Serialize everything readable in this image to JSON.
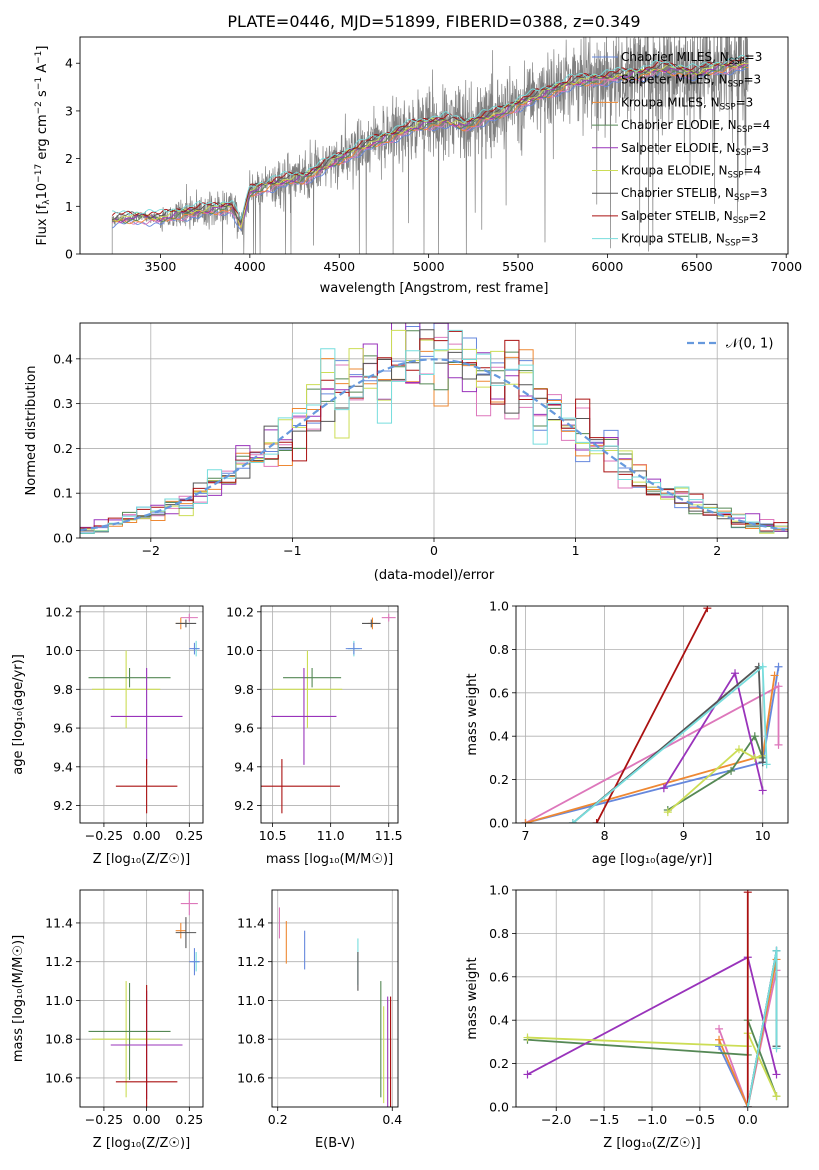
{
  "page": {
    "title": "PLATE=0446, MJD=51899, FIBERID=0388, z=0.349"
  },
  "colors": {
    "chabrier_miles": "#6688dd",
    "salpeter_miles": "#dd77bb",
    "kroupa_miles": "#ee8833",
    "chabrier_elodie": "#558855",
    "salpeter_elodie": "#9933bb",
    "kroupa_elodie": "#ccdd55",
    "chabrier_stelib": "#555555",
    "salpeter_stelib": "#aa1111",
    "kroupa_stelib": "#77dddd",
    "data_gray": "#808080",
    "normal_curve": "#6699dd"
  },
  "chart_data": [
    {
      "id": "spectrum",
      "type": "line",
      "xlabel": "wavelength [Angstrom, rest frame]",
      "ylabel_parts": {
        "main": "Flux [f",
        "sub": "λ",
        "mid": "10",
        "sup1": "−17",
        "unit": " erg cm",
        "sup2": "−2",
        "s": " s",
        "sup3": "−1",
        "A": " A",
        "sup4": "−1",
        "close": "]"
      },
      "xlim": [
        3050,
        7010
      ],
      "ylim": [
        0,
        4.55
      ],
      "xticks": [
        3500,
        4000,
        4500,
        5000,
        5500,
        6000,
        6500,
        7000
      ],
      "yticks": [
        0,
        1,
        2,
        3,
        4
      ],
      "grid": false,
      "legend_position": "top-right",
      "data_range": [
        3230,
        6790
      ],
      "model_anchor_points": [
        [
          3230,
          0.72
        ],
        [
          3400,
          0.78
        ],
        [
          3500,
          0.75
        ],
        [
          3600,
          0.85
        ],
        [
          3700,
          0.9
        ],
        [
          3800,
          0.95
        ],
        [
          3900,
          1.0
        ],
        [
          3950,
          0.6
        ],
        [
          4000,
          1.3
        ],
        [
          4100,
          1.45
        ],
        [
          4200,
          1.55
        ],
        [
          4300,
          1.6
        ],
        [
          4400,
          1.8
        ],
        [
          4500,
          2.0
        ],
        [
          4600,
          2.2
        ],
        [
          4700,
          2.35
        ],
        [
          4800,
          2.5
        ],
        [
          4900,
          2.65
        ],
        [
          5000,
          2.75
        ],
        [
          5100,
          2.8
        ],
        [
          5200,
          2.7
        ],
        [
          5300,
          2.85
        ],
        [
          5400,
          2.95
        ],
        [
          5500,
          3.15
        ],
        [
          5600,
          3.3
        ],
        [
          5700,
          3.45
        ],
        [
          5800,
          3.6
        ],
        [
          5900,
          3.65
        ],
        [
          6000,
          3.7
        ],
        [
          6100,
          3.75
        ],
        [
          6200,
          3.8
        ],
        [
          6300,
          3.9
        ],
        [
          6400,
          3.85
        ],
        [
          6500,
          3.8
        ],
        [
          6600,
          3.9
        ],
        [
          6700,
          3.95
        ],
        [
          6790,
          4.0
        ]
      ],
      "legend": [
        {
          "name": "Chabrier MILES, N",
          "sub": "SSP",
          "n": "=3",
          "color_key": "chabrier_miles"
        },
        {
          "name": "Salpeter MILES, N",
          "sub": "SSP",
          "n": "=3",
          "color_key": "salpeter_miles"
        },
        {
          "name": "Kroupa MILES, N",
          "sub": "SSP",
          "n": "=3",
          "color_key": "kroupa_miles"
        },
        {
          "name": "Chabrier ELODIE, N",
          "sub": "SSP",
          "n": "=4",
          "color_key": "chabrier_elodie"
        },
        {
          "name": "Salpeter ELODIE, N",
          "sub": "SSP",
          "n": "=3",
          "color_key": "salpeter_elodie"
        },
        {
          "name": "Kroupa ELODIE, N",
          "sub": "SSP",
          "n": "=4",
          "color_key": "kroupa_elodie"
        },
        {
          "name": "Chabrier STELIB, N",
          "sub": "SSP",
          "n": "=3",
          "color_key": "chabrier_stelib"
        },
        {
          "name": "Salpeter STELIB, N",
          "sub": "SSP",
          "n": "=2",
          "color_key": "salpeter_stelib"
        },
        {
          "name": "Kroupa STELIB, N",
          "sub": "SSP",
          "n": "=3",
          "color_key": "kroupa_stelib"
        }
      ]
    },
    {
      "id": "residuals",
      "type": "line",
      "xlabel": "(data-model)/error",
      "ylabel": "Normed distribution",
      "xlim": [
        -2.5,
        2.5
      ],
      "ylim": [
        0,
        0.48
      ],
      "xticks": [
        -2,
        -1,
        0,
        1,
        2
      ],
      "yticks": [
        0.0,
        0.1,
        0.2,
        0.3,
        0.4
      ],
      "grid": true,
      "legend_position": "top-right",
      "legend_label": "𝒩(0, 1)",
      "bin_width": 0.1,
      "series_keys": [
        "chabrier_miles",
        "salpeter_miles",
        "kroupa_miles",
        "chabrier_elodie",
        "salpeter_elodie",
        "kroupa_elodie",
        "chabrier_stelib",
        "salpeter_stelib",
        "kroupa_stelib"
      ]
    },
    {
      "id": "age_vs_Z",
      "type": "errorbar",
      "xlabel": "Z [log₁₀(Z/Z☉)]",
      "ylabel": "age  [log₁₀(age/yr)]",
      "xlim": [
        -0.39,
        0.33
      ],
      "ylim": [
        9.11,
        10.23
      ],
      "xticks": [
        -0.25,
        0.0,
        0.25
      ],
      "xtick_labels": [
        "−0.25",
        "0.00",
        "0.25"
      ],
      "yticks": [
        9.2,
        9.4,
        9.6,
        9.8,
        10.0,
        10.2
      ],
      "grid": true,
      "points": [
        {
          "c": "kroupa_elodie",
          "x": -0.12,
          "y": 9.8,
          "xerr": 0.2,
          "yerr": 0.2
        },
        {
          "c": "chabrier_elodie",
          "x": -0.1,
          "y": 9.86,
          "xerr": 0.24,
          "yerr": 0.05
        },
        {
          "c": "salpeter_elodie",
          "x": 0.0,
          "y": 9.66,
          "xerr": 0.21,
          "yerr": 0.25
        },
        {
          "c": "salpeter_stelib",
          "x": 0.0,
          "y": 9.3,
          "xerr": 0.18,
          "yerr": 0.14
        },
        {
          "c": "salpeter_miles",
          "x": 0.25,
          "y": 10.17,
          "xerr": 0.05,
          "yerr": 0.02
        },
        {
          "c": "kroupa_miles",
          "x": 0.2,
          "y": 10.14,
          "xerr": 0.03,
          "yerr": 0.03
        },
        {
          "c": "chabrier_stelib",
          "x": 0.23,
          "y": 10.14,
          "xerr": 0.06,
          "yerr": 0.02
        },
        {
          "c": "kroupa_stelib",
          "x": 0.29,
          "y": 10.01,
          "xerr": 0.02,
          "yerr": 0.04
        },
        {
          "c": "chabrier_miles",
          "x": 0.28,
          "y": 10.01,
          "xerr": 0.03,
          "yerr": 0.03
        }
      ]
    },
    {
      "id": "age_vs_mass",
      "type": "errorbar",
      "xlabel": "mass [log₁₀(M/M☉)]",
      "xlim": [
        10.4,
        11.58
      ],
      "ylim": [
        9.11,
        10.23
      ],
      "xticks": [
        10.5,
        11.0,
        11.5
      ],
      "xtick_labels": [
        "10.5",
        "11.0",
        "11.5"
      ],
      "yticks": [
        9.2,
        9.4,
        9.6,
        9.8,
        10.0,
        10.2
      ],
      "grid": true,
      "points": [
        {
          "c": "kroupa_elodie",
          "x": 10.8,
          "y": 9.8,
          "xerr": 0.3,
          "yerr": 0.2
        },
        {
          "c": "chabrier_elodie",
          "x": 10.84,
          "y": 9.86,
          "xerr": 0.25,
          "yerr": 0.05
        },
        {
          "c": "salpeter_elodie",
          "x": 10.77,
          "y": 9.66,
          "xerr": 0.28,
          "yerr": 0.25
        },
        {
          "c": "salpeter_stelib",
          "x": 10.58,
          "y": 9.3,
          "xerr": 0.5,
          "yerr": 0.14
        },
        {
          "c": "salpeter_miles",
          "x": 11.5,
          "y": 10.17,
          "xerr": 0.06,
          "yerr": 0.02
        },
        {
          "c": "kroupa_miles",
          "x": 11.36,
          "y": 10.14,
          "xerr": 0.04,
          "yerr": 0.03
        },
        {
          "c": "chabrier_stelib",
          "x": 11.35,
          "y": 10.14,
          "xerr": 0.08,
          "yerr": 0.02
        },
        {
          "c": "kroupa_stelib",
          "x": 11.2,
          "y": 10.01,
          "xerr": 0.05,
          "yerr": 0.04
        },
        {
          "c": "chabrier_miles",
          "x": 11.2,
          "y": 10.01,
          "xerr": 0.07,
          "yerr": 0.03
        }
      ]
    },
    {
      "id": "weight_vs_age",
      "type": "line",
      "xlabel": "age  [log₁₀(age/yr)]",
      "ylabel": "mass weight",
      "xlim": [
        6.88,
        10.32
      ],
      "ylim": [
        0,
        1
      ],
      "xticks": [
        7,
        8,
        9,
        10
      ],
      "yticks": [
        0.0,
        0.2,
        0.4,
        0.6,
        0.8,
        1.0
      ],
      "grid": true,
      "series": [
        {
          "c": "chabrier_miles",
          "pts": [
            [
              7.0,
              0.0
            ],
            [
              10.0,
              0.28
            ],
            [
              10.2,
              0.72
            ]
          ]
        },
        {
          "c": "salpeter_miles",
          "pts": [
            [
              7.0,
              0.0
            ],
            [
              10.2,
              0.63
            ],
            [
              10.2,
              0.36
            ]
          ]
        },
        {
          "c": "kroupa_miles",
          "pts": [
            [
              7.0,
              0.0
            ],
            [
              10.0,
              0.31
            ],
            [
              10.15,
              0.68
            ]
          ]
        },
        {
          "c": "chabrier_elodie",
          "pts": [
            [
              8.8,
              0.06
            ],
            [
              9.6,
              0.24
            ],
            [
              9.9,
              0.4
            ],
            [
              10.0,
              0.3
            ]
          ]
        },
        {
          "c": "salpeter_elodie",
          "pts": [
            [
              8.75,
              0.16
            ],
            [
              9.65,
              0.69
            ],
            [
              10.0,
              0.15
            ]
          ]
        },
        {
          "c": "kroupa_elodie",
          "pts": [
            [
              8.8,
              0.05
            ],
            [
              9.7,
              0.34
            ],
            [
              9.9,
              0.3
            ],
            [
              10.0,
              0.31
            ]
          ]
        },
        {
          "c": "chabrier_stelib",
          "pts": [
            [
              7.6,
              0.0
            ],
            [
              9.95,
              0.72
            ],
            [
              10.0,
              0.28
            ]
          ]
        },
        {
          "c": "salpeter_stelib",
          "pts": [
            [
              7.9,
              0.0
            ],
            [
              9.3,
              0.99
            ]
          ]
        },
        {
          "c": "kroupa_stelib",
          "pts": [
            [
              7.6,
              0.0
            ],
            [
              10.0,
              0.72
            ],
            [
              10.05,
              0.27
            ]
          ]
        }
      ]
    },
    {
      "id": "mass_vs_Z",
      "type": "errorbar",
      "xlabel": "Z [log₁₀(Z/Z☉)]",
      "ylabel": "mass [log₁₀(M/M☉)]",
      "xlim": [
        -0.39,
        0.33
      ],
      "ylim": [
        10.45,
        11.57
      ],
      "xticks": [
        -0.25,
        0.0,
        0.25
      ],
      "xtick_labels": [
        "−0.25",
        "0.00",
        "0.25"
      ],
      "yticks": [
        10.6,
        10.8,
        11.0,
        11.2,
        11.4
      ],
      "grid": true,
      "points": [
        {
          "c": "kroupa_elodie",
          "x": -0.12,
          "y": 10.8,
          "xerr": 0.2,
          "yerr": 0.3
        },
        {
          "c": "chabrier_elodie",
          "x": -0.1,
          "y": 10.84,
          "xerr": 0.24,
          "yerr": 0.25
        },
        {
          "c": "salpeter_elodie",
          "x": 0.0,
          "y": 10.77,
          "xerr": 0.21,
          "yerr": 0.28
        },
        {
          "c": "salpeter_stelib",
          "x": 0.0,
          "y": 10.58,
          "xerr": 0.18,
          "yerr": 0.5
        },
        {
          "c": "salpeter_miles",
          "x": 0.25,
          "y": 11.5,
          "xerr": 0.05,
          "yerr": 0.06
        },
        {
          "c": "kroupa_miles",
          "x": 0.2,
          "y": 11.36,
          "xerr": 0.03,
          "yerr": 0.04
        },
        {
          "c": "chabrier_stelib",
          "x": 0.23,
          "y": 11.35,
          "xerr": 0.06,
          "yerr": 0.08
        },
        {
          "c": "kroupa_stelib",
          "x": 0.29,
          "y": 11.2,
          "xerr": 0.02,
          "yerr": 0.05
        },
        {
          "c": "chabrier_miles",
          "x": 0.28,
          "y": 11.2,
          "xerr": 0.03,
          "yerr": 0.07
        }
      ]
    },
    {
      "id": "mass_vs_ebv",
      "type": "errorbar",
      "xlabel": "E(B-V)",
      "xlim": [
        0.19,
        0.41
      ],
      "ylim": [
        10.45,
        11.57
      ],
      "xticks": [
        0.2,
        0.4
      ],
      "xtick_labels": [
        "0.2",
        "0.4"
      ],
      "yticks": [
        10.6,
        10.8,
        11.0,
        11.2,
        11.4
      ],
      "grid": true,
      "points": [
        {
          "c": "salpeter_miles",
          "x": 0.203,
          "y": 11.4,
          "xerr": 0,
          "yerr": 0.08
        },
        {
          "c": "kroupa_miles",
          "x": 0.215,
          "y": 11.3,
          "xerr": 0,
          "yerr": 0.11
        },
        {
          "c": "chabrier_miles",
          "x": 0.247,
          "y": 11.26,
          "xerr": 0,
          "yerr": 0.1
        },
        {
          "c": "kroupa_stelib",
          "x": 0.34,
          "y": 11.2,
          "xerr": 0,
          "yerr": 0.12
        },
        {
          "c": "chabrier_stelib",
          "x": 0.34,
          "y": 11.15,
          "xerr": 0,
          "yerr": 0.1
        },
        {
          "c": "chabrier_elodie",
          "x": 0.38,
          "y": 10.8,
          "xerr": 0,
          "yerr": 0.3
        },
        {
          "c": "kroupa_elodie",
          "x": 0.385,
          "y": 10.72,
          "xerr": 0,
          "yerr": 0.25
        },
        {
          "c": "salpeter_elodie",
          "x": 0.392,
          "y": 10.72,
          "xerr": 0,
          "yerr": 0.3
        },
        {
          "c": "salpeter_stelib",
          "x": 0.397,
          "y": 10.72,
          "xerr": 0,
          "yerr": 0.3
        }
      ]
    },
    {
      "id": "weight_vs_Z",
      "type": "line",
      "xlabel": "Z [log₁₀(Z/Z☉)]",
      "ylabel": "mass weight",
      "xlim": [
        -2.42,
        0.42
      ],
      "ylim": [
        0,
        1
      ],
      "xticks": [
        -2.0,
        -1.5,
        -1.0,
        -0.5,
        0.0
      ],
      "xtick_labels": [
        "−2.0",
        "−1.5",
        "−1.0",
        "−0.5",
        "0.0"
      ],
      "yticks": [
        0.0,
        0.2,
        0.4,
        0.6,
        0.8,
        1.0
      ],
      "grid": true,
      "series": [
        {
          "c": "chabrier_miles",
          "pts": [
            [
              -0.3,
              0.28
            ],
            [
              0.0,
              0.0
            ],
            [
              0.3,
              0.72
            ]
          ]
        },
        {
          "c": "salpeter_miles",
          "pts": [
            [
              -0.3,
              0.36
            ],
            [
              0.0,
              0.0
            ],
            [
              0.3,
              0.63
            ]
          ]
        },
        {
          "c": "kroupa_miles",
          "pts": [
            [
              -0.3,
              0.31
            ],
            [
              0.0,
              0.0
            ],
            [
              0.3,
              0.68
            ]
          ]
        },
        {
          "c": "chabrier_elodie",
          "pts": [
            [
              -2.3,
              0.31
            ],
            [
              0.0,
              0.24
            ],
            [
              0.0,
              0.4
            ],
            [
              0.3,
              0.05
            ]
          ]
        },
        {
          "c": "salpeter_elodie",
          "pts": [
            [
              -2.3,
              0.15
            ],
            [
              0.0,
              0.69
            ],
            [
              0.3,
              0.15
            ]
          ]
        },
        {
          "c": "kroupa_elodie",
          "pts": [
            [
              -2.3,
              0.32
            ],
            [
              0.0,
              0.28
            ],
            [
              0.0,
              0.34
            ],
            [
              0.3,
              0.05
            ]
          ]
        },
        {
          "c": "chabrier_stelib",
          "pts": [
            [
              0.0,
              0.0
            ],
            [
              0.3,
              0.72
            ],
            [
              0.3,
              0.28
            ]
          ]
        },
        {
          "c": "salpeter_stelib",
          "pts": [
            [
              0.0,
              0.0
            ],
            [
              0.0,
              0.99
            ]
          ]
        },
        {
          "c": "kroupa_stelib",
          "pts": [
            [
              0.0,
              0.0
            ],
            [
              0.3,
              0.72
            ],
            [
              0.3,
              0.27
            ]
          ]
        }
      ]
    }
  ]
}
